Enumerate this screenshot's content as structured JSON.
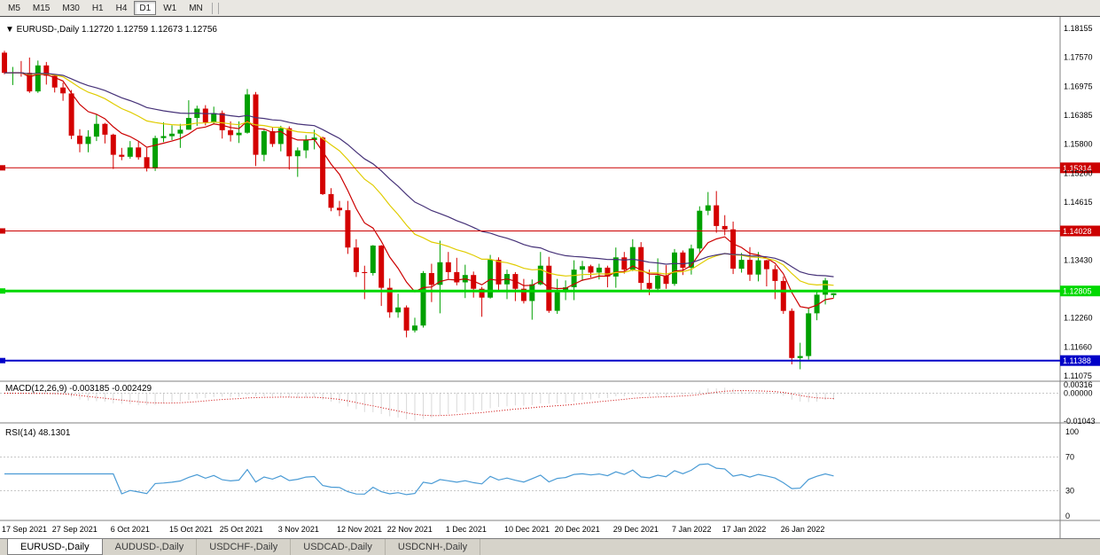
{
  "toolbar": {
    "timeframes": [
      {
        "label": "M5",
        "active": false
      },
      {
        "label": "M15",
        "active": false
      },
      {
        "label": "M30",
        "active": false
      },
      {
        "label": "H1",
        "active": false
      },
      {
        "label": "H4",
        "active": false
      },
      {
        "label": "D1",
        "active": true
      },
      {
        "label": "W1",
        "active": false
      },
      {
        "label": "MN",
        "active": false
      }
    ]
  },
  "header": {
    "symbol_period": "EURUSD-,Daily",
    "ohlc": {
      "open": "1.12720",
      "high": "1.12759",
      "low": "1.12673",
      "close": "1.12756"
    }
  },
  "price_axis": {
    "labels": [
      "1.18155",
      "1.17570",
      "1.16975",
      "1.16385",
      "1.15800",
      "1.15200",
      "1.14615",
      "1.13430",
      "1.12260",
      "1.11660",
      "1.11075"
    ]
  },
  "hlines": [
    {
      "price": 1.15314,
      "label": "1.15314",
      "color": "#cc0000",
      "width": 1
    },
    {
      "price": 1.14028,
      "label": "1.14028",
      "color": "#cc0000",
      "width": 1
    },
    {
      "price": 1.12805,
      "label": "1.12805",
      "color": "#00d800",
      "width": 3
    },
    {
      "price": 1.11388,
      "label": "1.11388",
      "color": "#0000c8",
      "width": 2
    }
  ],
  "macd": {
    "label": "MACD(12,26,9)",
    "values": [
      "-0.003185",
      "-0.002429"
    ],
    "axis": [
      "0.00316",
      "0.00000",
      "-0.01043"
    ],
    "fast": 12,
    "slow": 26,
    "signal_period": 9,
    "histogram_color": "#b4b4b4",
    "signal_color": "#cc0000"
  },
  "rsi": {
    "label": "RSI(14)",
    "value": "48.1301",
    "period": 14,
    "axis": [
      "100",
      "70",
      "30",
      "0"
    ],
    "levels": [
      70,
      30
    ],
    "color": "#4a9bd5"
  },
  "x_axis": {
    "labels": [
      "17 Sep 2021",
      "27 Sep 2021",
      "6 Oct 2021",
      "15 Oct 2021",
      "25 Oct 2021",
      "3 Nov 2021",
      "12 Nov 2021",
      "22 Nov 2021",
      "1 Dec 2021",
      "10 Dec 2021",
      "20 Dec 2021",
      "29 Dec 2021",
      "7 Jan 2022",
      "17 Jan 2022",
      "26 Jan 2022"
    ]
  },
  "tabs": [
    {
      "label": "EURUSD-,Daily",
      "active": true
    },
    {
      "label": "AUDUSD-,Daily",
      "active": false
    },
    {
      "label": "USDCHF-,Daily",
      "active": false
    },
    {
      "label": "USDCAD-,Daily",
      "active": false
    },
    {
      "label": "USDCNH-,Daily",
      "active": false
    }
  ],
  "chart_data": {
    "type": "candlestick",
    "symbol": "EURUSD-",
    "timeframe": "Daily",
    "ylim": [
      1.11075,
      1.18155
    ],
    "colors": {
      "bull": "#00a000",
      "bear": "#d40000"
    },
    "moving_averages": [
      {
        "period": 8,
        "color": "#cc0000"
      },
      {
        "period": 21,
        "color": "#e0cc00"
      },
      {
        "period": 34,
        "color": "#463278"
      }
    ],
    "candles": [
      [
        "17 Sep 2021",
        1.1766,
        1.177,
        1.1722,
        1.1725
      ],
      [
        "20 Sep 2021",
        1.1725,
        1.1737,
        1.17,
        1.1726
      ],
      [
        "21 Sep 2021",
        1.1726,
        1.1749,
        1.1717,
        1.1725
      ],
      [
        "22 Sep 2021",
        1.1725,
        1.1756,
        1.1684,
        1.1687
      ],
      [
        "23 Sep 2021",
        1.1687,
        1.175,
        1.1684,
        1.174
      ],
      [
        "24 Sep 2021",
        1.174,
        1.1747,
        1.1701,
        1.1719
      ],
      [
        "27 Sep 2021",
        1.1719,
        1.1722,
        1.1685,
        1.1695
      ],
      [
        "28 Sep 2021",
        1.1695,
        1.1705,
        1.1668,
        1.1683
      ],
      [
        "29 Sep 2021",
        1.1683,
        1.169,
        1.159,
        1.1597
      ],
      [
        "30 Sep 2021",
        1.1597,
        1.161,
        1.1563,
        1.158
      ],
      [
        "1 Oct 2021",
        1.158,
        1.1608,
        1.1563,
        1.1595
      ],
      [
        "4 Oct 2021",
        1.1595,
        1.164,
        1.1586,
        1.1621
      ],
      [
        "5 Oct 2021",
        1.1621,
        1.1623,
        1.1581,
        1.1599
      ],
      [
        "6 Oct 2021",
        1.1599,
        1.1601,
        1.1529,
        1.1558
      ],
      [
        "7 Oct 2021",
        1.1558,
        1.1572,
        1.1547,
        1.1554
      ],
      [
        "8 Oct 2021",
        1.1554,
        1.1586,
        1.155,
        1.1573
      ],
      [
        "11 Oct 2021",
        1.1573,
        1.1586,
        1.1548,
        1.1553
      ],
      [
        "12 Oct 2021",
        1.1553,
        1.1572,
        1.1524,
        1.153
      ],
      [
        "13 Oct 2021",
        1.153,
        1.1597,
        1.1525,
        1.1592
      ],
      [
        "14 Oct 2021",
        1.1592,
        1.1624,
        1.1584,
        1.1596
      ],
      [
        "15 Oct 2021",
        1.1596,
        1.1618,
        1.1588,
        1.1601
      ],
      [
        "18 Oct 2021",
        1.1601,
        1.1621,
        1.1572,
        1.1609
      ],
      [
        "19 Oct 2021",
        1.1609,
        1.1669,
        1.1609,
        1.1633
      ],
      [
        "20 Oct 2021",
        1.1633,
        1.1658,
        1.1617,
        1.1652
      ],
      [
        "21 Oct 2021",
        1.1652,
        1.1659,
        1.1618,
        1.1624
      ],
      [
        "22 Oct 2021",
        1.1624,
        1.1656,
        1.162,
        1.1643
      ],
      [
        "25 Oct 2021",
        1.1643,
        1.1648,
        1.1591,
        1.1608
      ],
      [
        "26 Oct 2021",
        1.1608,
        1.1626,
        1.1585,
        1.1598
      ],
      [
        "27 Oct 2021",
        1.1598,
        1.1626,
        1.1582,
        1.1603
      ],
      [
        "28 Oct 2021",
        1.1603,
        1.1692,
        1.1601,
        1.1681
      ],
      [
        "29 Oct 2021",
        1.1681,
        1.1686,
        1.1535,
        1.1558
      ],
      [
        "1 Nov 2021",
        1.1558,
        1.1609,
        1.1545,
        1.1606
      ],
      [
        "2 Nov 2021",
        1.1606,
        1.1613,
        1.1574,
        1.158
      ],
      [
        "3 Nov 2021",
        1.158,
        1.1617,
        1.1565,
        1.1612
      ],
      [
        "4 Nov 2021",
        1.1612,
        1.1616,
        1.1528,
        1.1555
      ],
      [
        "5 Nov 2021",
        1.1555,
        1.1573,
        1.1513,
        1.1567
      ],
      [
        "8 Nov 2021",
        1.1567,
        1.1598,
        1.1551,
        1.1588
      ],
      [
        "9 Nov 2021",
        1.1588,
        1.1609,
        1.1569,
        1.1593
      ],
      [
        "10 Nov 2021",
        1.1593,
        1.1595,
        1.1476,
        1.1478
      ],
      [
        "11 Nov 2021",
        1.1478,
        1.149,
        1.1443,
        1.145
      ],
      [
        "12 Nov 2021",
        1.145,
        1.1464,
        1.1433,
        1.1445
      ],
      [
        "15 Nov 2021",
        1.1445,
        1.1464,
        1.1356,
        1.1369
      ],
      [
        "16 Nov 2021",
        1.1369,
        1.1386,
        1.1309,
        1.1319
      ],
      [
        "17 Nov 2021",
        1.1319,
        1.1332,
        1.1264,
        1.1317
      ],
      [
        "18 Nov 2021",
        1.1317,
        1.1374,
        1.1312,
        1.1373
      ],
      [
        "19 Nov 2021",
        1.1373,
        1.1374,
        1.125,
        1.1287
      ],
      [
        "22 Nov 2021",
        1.1287,
        1.1306,
        1.1226,
        1.1237
      ],
      [
        "23 Nov 2021",
        1.1237,
        1.1275,
        1.1226,
        1.1247
      ],
      [
        "24 Nov 2021",
        1.1247,
        1.1251,
        1.1186,
        1.12
      ],
      [
        "25 Nov 2021",
        1.12,
        1.1226,
        1.1196,
        1.121
      ],
      [
        "26 Nov 2021",
        1.121,
        1.1321,
        1.1206,
        1.1317
      ],
      [
        "29 Nov 2021",
        1.1317,
        1.1336,
        1.1258,
        1.1293
      ],
      [
        "30 Nov 2021",
        1.1293,
        1.1383,
        1.1235,
        1.1339
      ],
      [
        "1 Dec 2021",
        1.1339,
        1.136,
        1.1305,
        1.1319
      ],
      [
        "2 Dec 2021",
        1.1319,
        1.1348,
        1.1292,
        1.1298
      ],
      [
        "3 Dec 2021",
        1.1298,
        1.1334,
        1.1266,
        1.1313
      ],
      [
        "6 Dec 2021",
        1.1313,
        1.132,
        1.1267,
        1.1285
      ],
      [
        "7 Dec 2021",
        1.1285,
        1.1289,
        1.1228,
        1.1267
      ],
      [
        "8 Dec 2021",
        1.1267,
        1.1354,
        1.1265,
        1.1344
      ],
      [
        "9 Dec 2021",
        1.1344,
        1.1349,
        1.128,
        1.1294
      ],
      [
        "10 Dec 2021",
        1.1294,
        1.1324,
        1.1264,
        1.1315
      ],
      [
        "13 Dec 2021",
        1.1315,
        1.1319,
        1.126,
        1.1285
      ],
      [
        "14 Dec 2021",
        1.1285,
        1.1305,
        1.1255,
        1.126
      ],
      [
        "15 Dec 2021",
        1.126,
        1.1304,
        1.1222,
        1.1294
      ],
      [
        "16 Dec 2021",
        1.1294,
        1.136,
        1.1292,
        1.1332
      ],
      [
        "17 Dec 2021",
        1.1332,
        1.135,
        1.1236,
        1.124
      ],
      [
        "20 Dec 2021",
        1.124,
        1.1305,
        1.1234,
        1.1278
      ],
      [
        "21 Dec 2021",
        1.1278,
        1.1302,
        1.1262,
        1.1288
      ],
      [
        "22 Dec 2021",
        1.1288,
        1.1343,
        1.1262,
        1.1324
      ],
      [
        "23 Dec 2021",
        1.1324,
        1.1342,
        1.1301,
        1.1331
      ],
      [
        "24 Dec 2021",
        1.1331,
        1.1334,
        1.1308,
        1.1318
      ],
      [
        "27 Dec 2021",
        1.1318,
        1.1336,
        1.1304,
        1.1328
      ],
      [
        "28 Dec 2021",
        1.1328,
        1.1332,
        1.1288,
        1.131
      ],
      [
        "29 Dec 2021",
        1.131,
        1.1369,
        1.1287,
        1.1349
      ],
      [
        "30 Dec 2021",
        1.1349,
        1.136,
        1.1316,
        1.1324
      ],
      [
        "31 Dec 2021",
        1.1324,
        1.1386,
        1.1321,
        1.137
      ],
      [
        "3 Jan 2022",
        1.137,
        1.138,
        1.1279,
        1.1297
      ],
      [
        "4 Jan 2022",
        1.1297,
        1.1324,
        1.1272,
        1.1285
      ],
      [
        "5 Jan 2022",
        1.1285,
        1.1347,
        1.1278,
        1.1312
      ],
      [
        "6 Jan 2022",
        1.1312,
        1.1333,
        1.1285,
        1.1295
      ],
      [
        "7 Jan 2022",
        1.1295,
        1.1366,
        1.1291,
        1.1359
      ],
      [
        "10 Jan 2022",
        1.1359,
        1.1363,
        1.1313,
        1.1328
      ],
      [
        "11 Jan 2022",
        1.1328,
        1.1375,
        1.1314,
        1.1367
      ],
      [
        "12 Jan 2022",
        1.1367,
        1.1453,
        1.1358,
        1.1444
      ],
      [
        "13 Jan 2022",
        1.1444,
        1.1482,
        1.1435,
        1.1455
      ],
      [
        "14 Jan 2022",
        1.1455,
        1.1484,
        1.1399,
        1.1413
      ],
      [
        "17 Jan 2022",
        1.1413,
        1.1435,
        1.1394,
        1.1406
      ],
      [
        "18 Jan 2022",
        1.1406,
        1.1422,
        1.1315,
        1.1326
      ],
      [
        "19 Jan 2022",
        1.1326,
        1.1358,
        1.1318,
        1.1344
      ],
      [
        "20 Jan 2022",
        1.1344,
        1.137,
        1.1301,
        1.1314
      ],
      [
        "21 Jan 2022",
        1.1314,
        1.136,
        1.13,
        1.1343
      ],
      [
        "24 Jan 2022",
        1.1343,
        1.1344,
        1.129,
        1.1325
      ],
      [
        "25 Jan 2022",
        1.1325,
        1.1333,
        1.1264,
        1.1301
      ],
      [
        "26 Jan 2022",
        1.1301,
        1.131,
        1.1234,
        1.124
      ],
      [
        "27 Jan 2022",
        1.124,
        1.1245,
        1.1131,
        1.1144
      ],
      [
        "28 Jan 2022",
        1.1144,
        1.1175,
        1.1121,
        1.1148
      ],
      [
        "31 Jan 2022",
        1.1148,
        1.1246,
        1.1141,
        1.1235
      ],
      [
        "1 Feb 2022",
        1.1235,
        1.1279,
        1.1221,
        1.1273
      ],
      [
        "2 Feb 2022",
        1.1273,
        1.1307,
        1.1253,
        1.1302
      ],
      [
        "3 Feb 2022",
        1.1272,
        1.1276,
        1.1267,
        1.1276
      ]
    ]
  }
}
